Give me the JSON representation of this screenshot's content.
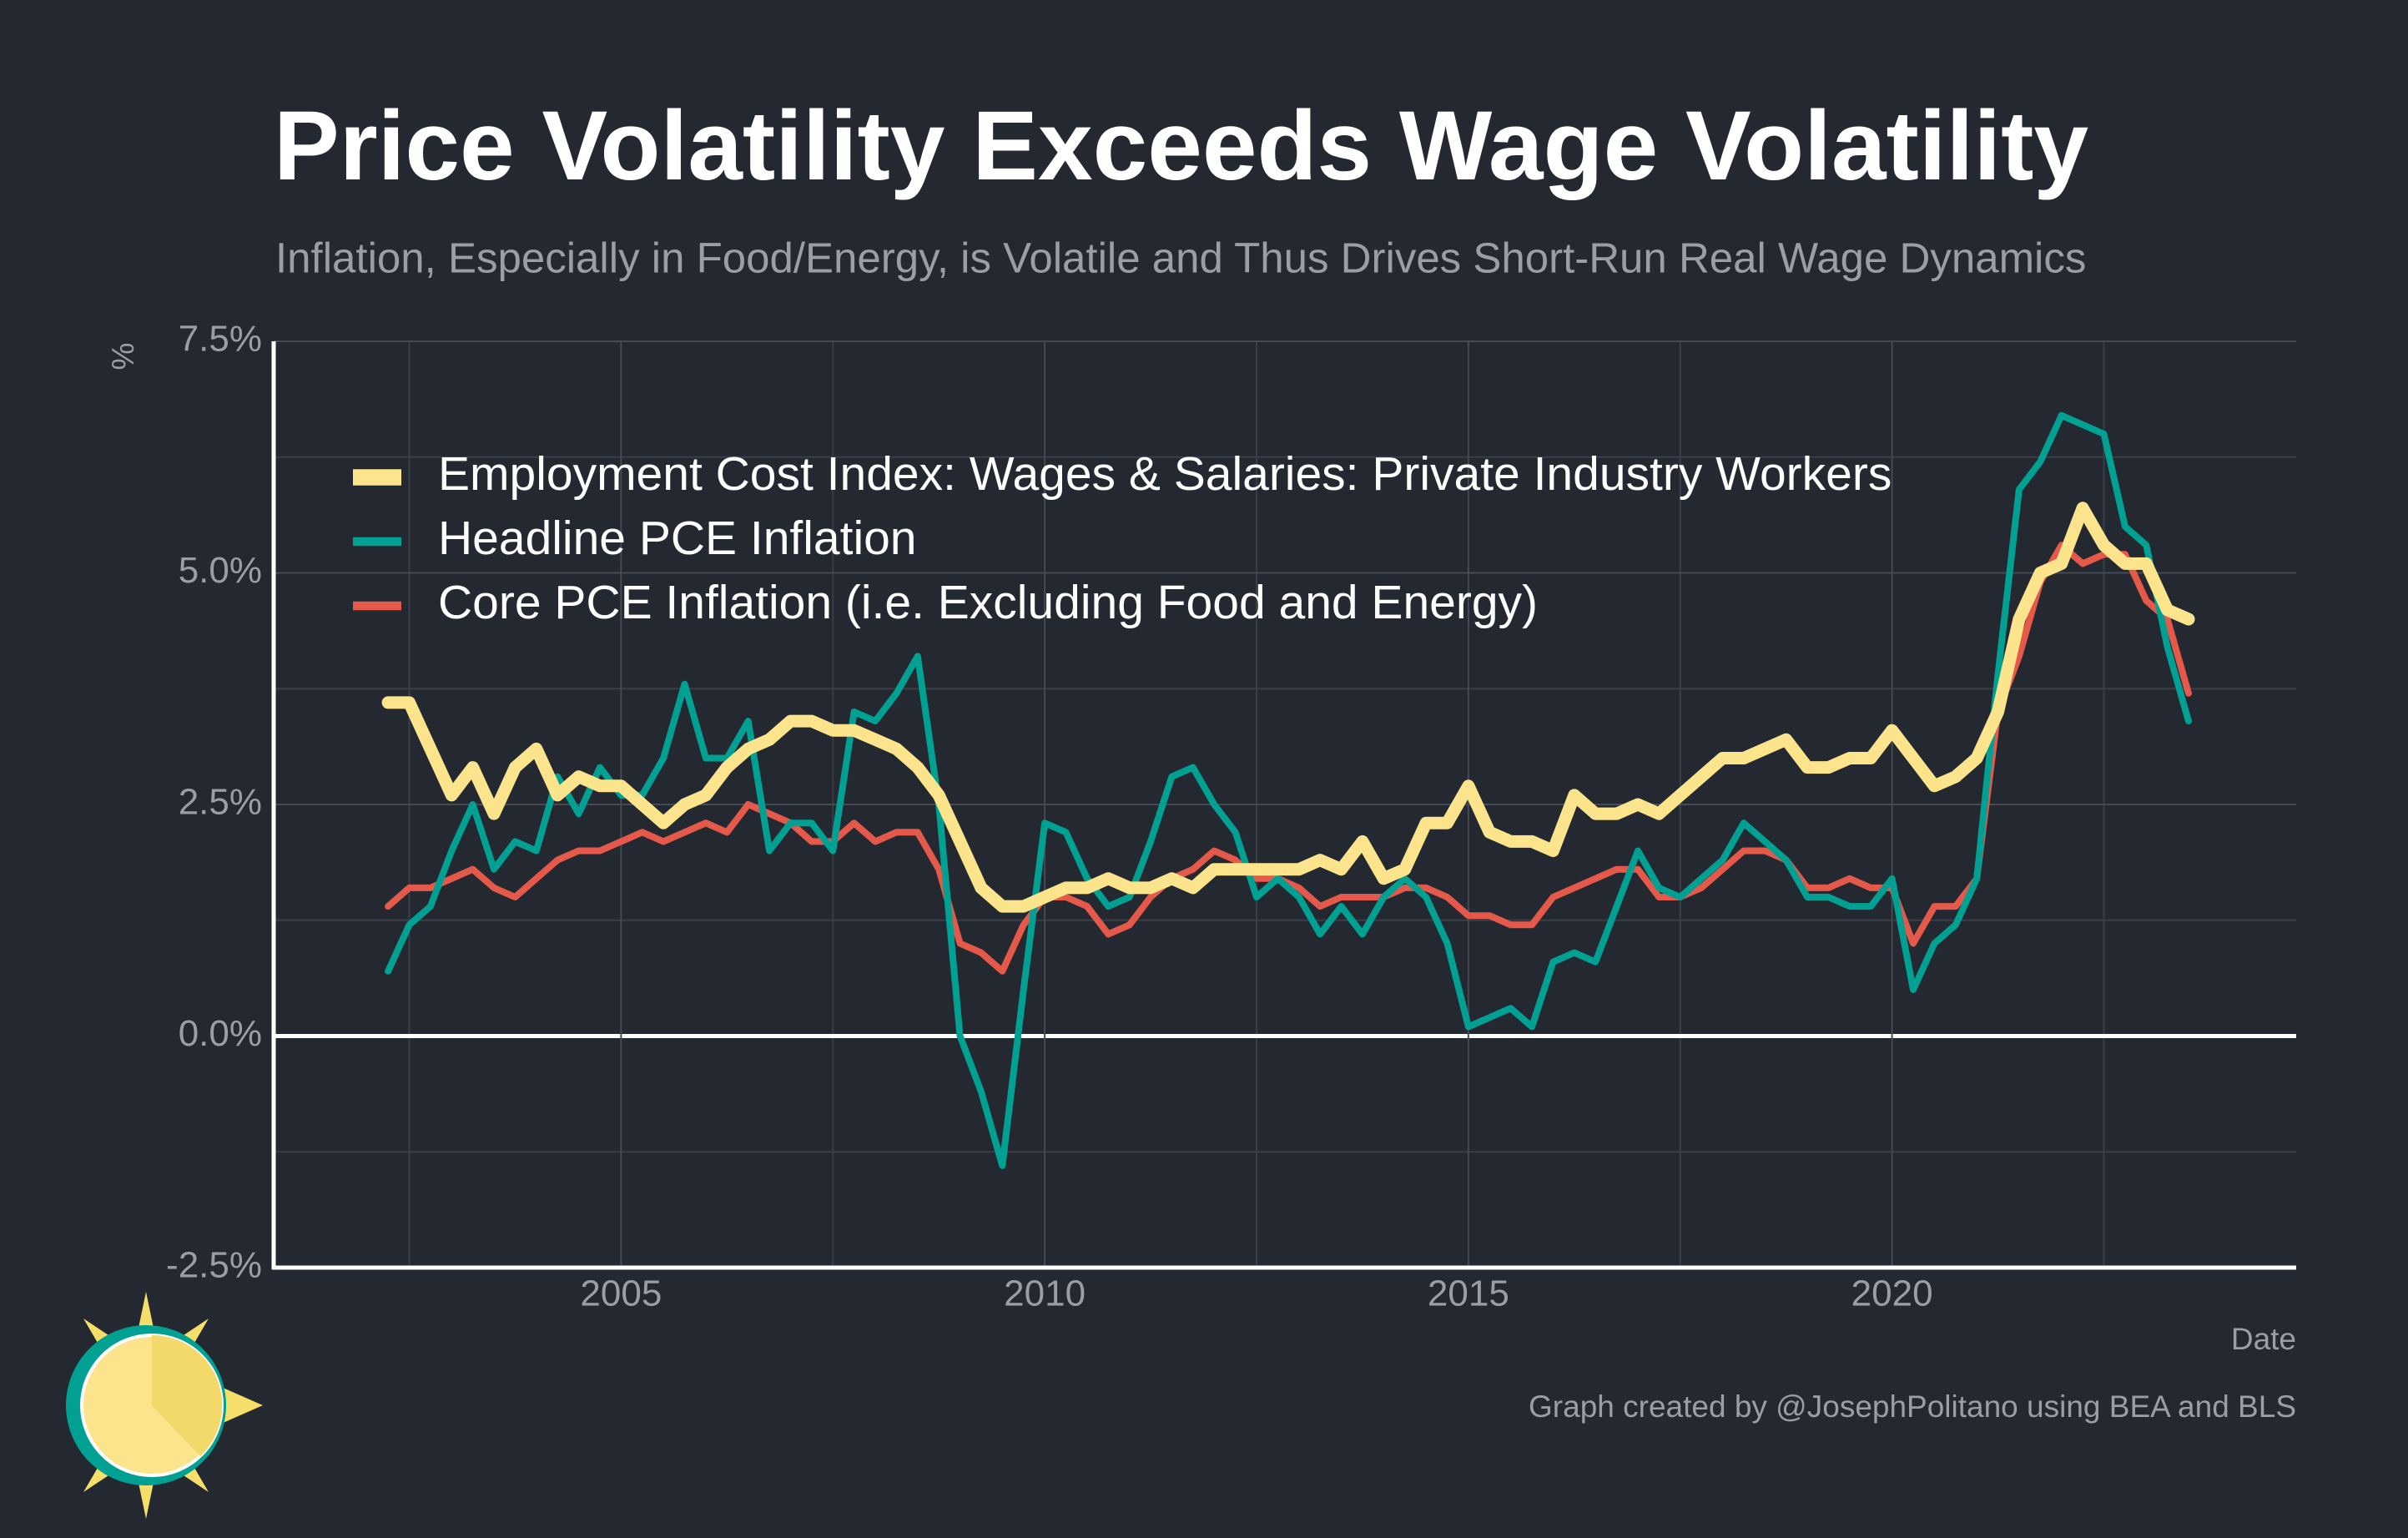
{
  "chart_data": {
    "type": "line",
    "title": "Price Volatility Exceeds Wage Volatility",
    "subtitle": "Inflation, Especially in Food/Energy, is Volatile and Thus Drives Short-Run Real Wage Dynamics",
    "y_label": "%",
    "x_label": "Date",
    "caption": "Graph created by @JosephPolitano using BEA and BLS",
    "x": [
      2002.25,
      2002.5,
      2002.75,
      2003,
      2003.25,
      2003.5,
      2003.75,
      2004,
      2004.25,
      2004.5,
      2004.75,
      2005,
      2005.25,
      2005.5,
      2005.75,
      2006,
      2006.25,
      2006.5,
      2006.75,
      2007,
      2007.25,
      2007.5,
      2007.75,
      2008,
      2008.25,
      2008.5,
      2008.75,
      2009,
      2009.25,
      2009.5,
      2009.75,
      2010,
      2010.25,
      2010.5,
      2010.75,
      2011,
      2011.25,
      2011.5,
      2011.75,
      2012,
      2012.25,
      2012.5,
      2012.75,
      2013,
      2013.25,
      2013.5,
      2013.75,
      2014,
      2014.25,
      2014.5,
      2014.75,
      2015,
      2015.25,
      2015.5,
      2015.75,
      2016,
      2016.25,
      2016.5,
      2016.75,
      2017,
      2017.25,
      2017.5,
      2017.75,
      2018,
      2018.25,
      2018.5,
      2018.75,
      2019,
      2019.25,
      2019.5,
      2019.75,
      2020,
      2020.25,
      2020.5,
      2020.75,
      2021,
      2021.25,
      2021.5,
      2021.75,
      2022,
      2022.25,
      2022.5,
      2022.75,
      2023,
      2023.25,
      2023.5
    ],
    "series": [
      {
        "name": "Employment Cost Index: Wages & Salaries: Private Industry Workers",
        "color": "#fbe48c",
        "width": 15,
        "values": [
          3.6,
          3.6,
          3.1,
          2.6,
          2.9,
          2.4,
          2.9,
          3.1,
          2.6,
          2.8,
          2.7,
          2.7,
          2.5,
          2.3,
          2.5,
          2.6,
          2.9,
          3.1,
          3.2,
          3.4,
          3.4,
          3.3,
          3.3,
          3.2,
          3.1,
          2.9,
          2.6,
          2.1,
          1.6,
          1.4,
          1.4,
          1.5,
          1.6,
          1.6,
          1.7,
          1.6,
          1.6,
          1.7,
          1.6,
          1.8,
          1.8,
          1.8,
          1.8,
          1.8,
          1.9,
          1.8,
          2.1,
          1.7,
          1.8,
          2.3,
          2.3,
          2.7,
          2.2,
          2.1,
          2.1,
          2.0,
          2.6,
          2.4,
          2.4,
          2.5,
          2.4,
          2.6,
          2.8,
          3.0,
          3.0,
          3.1,
          3.2,
          2.9,
          2.9,
          3.0,
          3.0,
          3.3,
          3.0,
          2.7,
          2.8,
          3.0,
          3.5,
          4.5,
          5.0,
          5.1,
          5.7,
          5.3,
          5.1,
          5.1,
          4.6,
          4.5
        ]
      },
      {
        "name": "Headline PCE Inflation",
        "color": "#00a092",
        "width": 8,
        "values": [
          0.7,
          1.2,
          1.4,
          2.0,
          2.5,
          1.8,
          2.1,
          2.0,
          2.8,
          2.4,
          2.9,
          2.6,
          2.6,
          3.0,
          3.8,
          3.0,
          3.0,
          3.4,
          2.0,
          2.3,
          2.3,
          2.0,
          3.5,
          3.4,
          3.7,
          4.1,
          2.5,
          0.0,
          -0.6,
          -1.4,
          0.5,
          2.3,
          2.2,
          1.7,
          1.4,
          1.5,
          2.1,
          2.8,
          2.9,
          2.5,
          2.2,
          1.5,
          1.7,
          1.5,
          1.1,
          1.4,
          1.1,
          1.5,
          1.7,
          1.5,
          1.0,
          0.1,
          0.2,
          0.3,
          0.1,
          0.8,
          0.9,
          0.8,
          1.4,
          2.0,
          1.6,
          1.5,
          1.7,
          1.9,
          2.3,
          2.1,
          1.9,
          1.5,
          1.5,
          1.4,
          1.4,
          1.7,
          0.5,
          1.0,
          1.2,
          1.7,
          3.9,
          5.9,
          6.2,
          6.7,
          6.6,
          6.5,
          5.5,
          5.3,
          4.2,
          3.4
        ]
      },
      {
        "name": "Core PCE Inflation (i.e. Excluding Food and Energy)",
        "color": "#e5594b",
        "width": 8,
        "values": [
          1.4,
          1.6,
          1.6,
          1.7,
          1.8,
          1.6,
          1.5,
          1.7,
          1.9,
          2.0,
          2.0,
          2.1,
          2.2,
          2.1,
          2.2,
          2.3,
          2.2,
          2.5,
          2.4,
          2.3,
          2.1,
          2.1,
          2.3,
          2.1,
          2.2,
          2.2,
          1.8,
          1.0,
          0.9,
          0.7,
          1.2,
          1.5,
          1.5,
          1.4,
          1.1,
          1.2,
          1.5,
          1.7,
          1.8,
          2.0,
          1.9,
          1.7,
          1.7,
          1.6,
          1.4,
          1.5,
          1.5,
          1.5,
          1.6,
          1.6,
          1.5,
          1.3,
          1.3,
          1.2,
          1.2,
          1.5,
          1.6,
          1.7,
          1.8,
          1.8,
          1.5,
          1.5,
          1.6,
          1.8,
          2.0,
          2.0,
          1.9,
          1.6,
          1.6,
          1.7,
          1.6,
          1.6,
          1.0,
          1.4,
          1.4,
          1.7,
          3.5,
          4.1,
          4.9,
          5.3,
          5.1,
          5.2,
          5.2,
          4.7,
          4.5,
          3.7
        ]
      }
    ],
    "xlim": [
      2000.9,
      2024.77
    ],
    "xticks": [
      2005,
      2010,
      2015,
      2020
    ],
    "ylim": [
      -2.5,
      7.5
    ],
    "yticks": [
      {
        "value": -2.5,
        "label": "-2.5%"
      },
      {
        "value": 0,
        "label": "0.0%"
      },
      {
        "value": 2.5,
        "label": "2.5%"
      },
      {
        "value": 5,
        "label": "5.0%"
      },
      {
        "value": 7.5,
        "label": "7.5%"
      }
    ],
    "grid": true,
    "legend": "top-left"
  }
}
